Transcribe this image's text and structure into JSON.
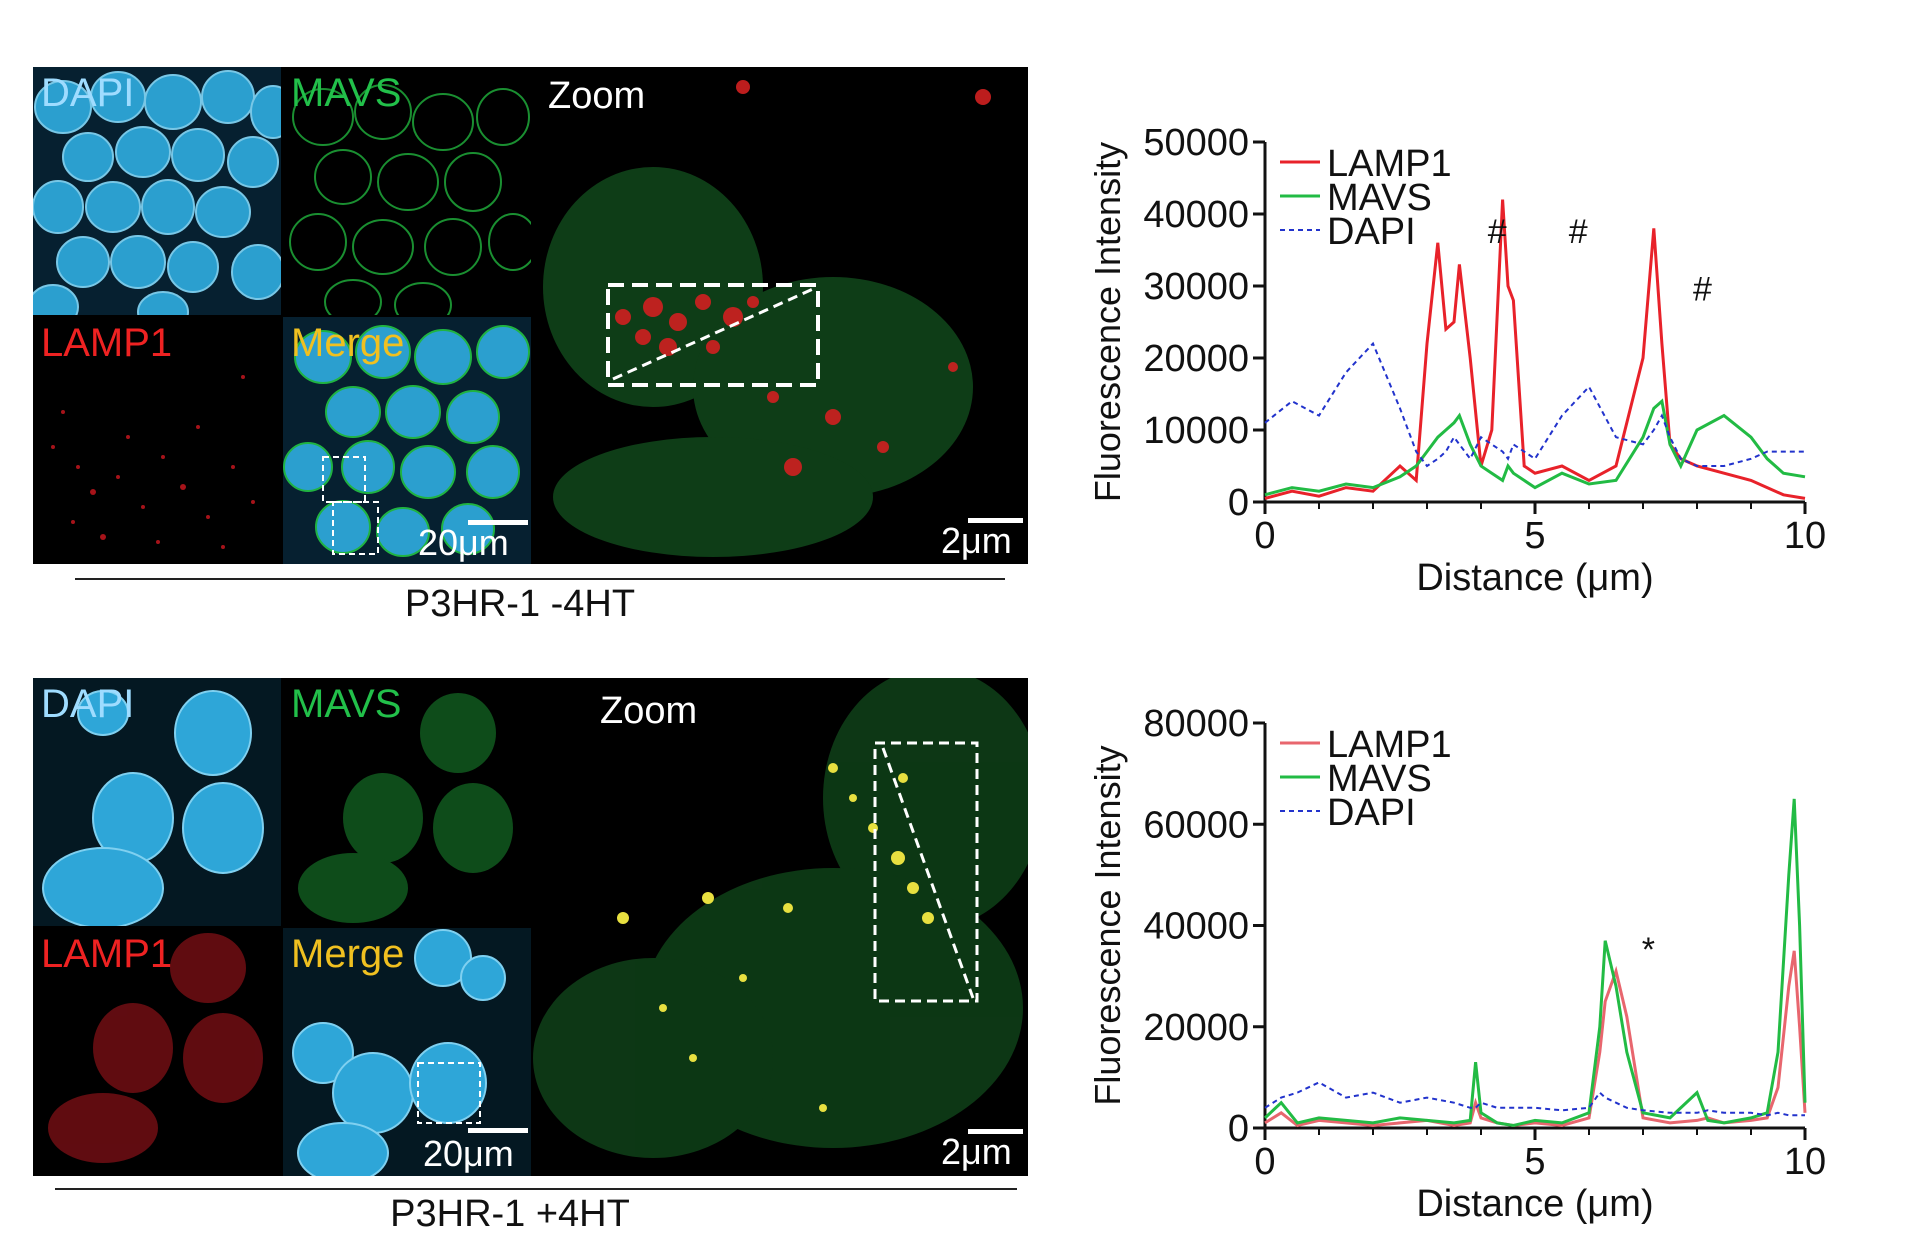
{
  "rows": [
    {
      "condition": "P3HR-1 -4HT",
      "channels": {
        "dapi": "DAPI",
        "mavs": "MAVS",
        "lamp1": "LAMP1",
        "merge": "Merge"
      },
      "zoom_label": "Zoom",
      "scale_small": "20μm",
      "scale_zoom": "2μm"
    },
    {
      "condition": "P3HR-1 +4HT",
      "channels": {
        "dapi": "DAPI",
        "mavs": "MAVS",
        "lamp1": "LAMP1",
        "merge": "Merge"
      },
      "zoom_label": "Zoom",
      "scale_small": "20μm",
      "scale_zoom": "2μm"
    }
  ],
  "colors": {
    "dapi": "#3fb0e0",
    "mavs": "#22bb44",
    "lamp1": "#e8222a",
    "merge": "#f0c020",
    "dapi_line": "#2233cc"
  },
  "chart_data": [
    {
      "type": "line",
      "title": "",
      "xlabel": "Distance (μm)",
      "ylabel": "Fluorescence Intensity",
      "xlim": [
        0,
        10
      ],
      "ylim": [
        0,
        50000
      ],
      "xticks": [
        0,
        5,
        10
      ],
      "yticks": [
        0,
        10000,
        20000,
        30000,
        40000,
        50000
      ],
      "legend": "top-left",
      "x": [
        0,
        0.5,
        1,
        1.5,
        2,
        2.5,
        2.8,
        3,
        3.2,
        3.35,
        3.5,
        3.6,
        3.8,
        4,
        4.2,
        4.4,
        4.5,
        4.6,
        4.8,
        5,
        5.5,
        6,
        6.5,
        7,
        7.2,
        7.35,
        7.5,
        7.7,
        8,
        8.5,
        9,
        9.3,
        9.6,
        10
      ],
      "series": [
        {
          "name": "LAMP1",
          "color": "#e8222a",
          "dash": false,
          "values": [
            500,
            1500,
            800,
            2000,
            1500,
            5000,
            3000,
            22000,
            36000,
            24000,
            25000,
            33000,
            20000,
            5000,
            10000,
            42000,
            30000,
            28000,
            5000,
            4000,
            5000,
            3000,
            5000,
            20000,
            38000,
            22000,
            8000,
            6000,
            5000,
            4000,
            3000,
            2000,
            1000,
            500
          ]
        },
        {
          "name": "MAVS",
          "color": "#22bb44",
          "dash": false,
          "values": [
            1000,
            2000,
            1500,
            2500,
            2000,
            3500,
            5000,
            7000,
            9000,
            10000,
            11000,
            12000,
            8000,
            5000,
            4000,
            3000,
            5000,
            4000,
            3000,
            2000,
            4000,
            2500,
            3000,
            9000,
            13000,
            14000,
            8000,
            5000,
            10000,
            12000,
            9000,
            6000,
            4000,
            3500
          ]
        },
        {
          "name": "DAPI",
          "color": "#2233cc",
          "dash": true,
          "values": [
            11000,
            14000,
            12000,
            18000,
            22000,
            13000,
            7000,
            5000,
            6000,
            7000,
            9000,
            8000,
            6000,
            9000,
            8000,
            7000,
            6000,
            8000,
            7000,
            6000,
            12000,
            16000,
            9000,
            8000,
            10000,
            12000,
            9000,
            6000,
            5000,
            5000,
            6000,
            7000,
            7000,
            7000
          ]
        }
      ],
      "annotations": [
        {
          "text": "#",
          "x": 4.3,
          "y": 36000
        },
        {
          "text": "#",
          "x": 5.8,
          "y": 36000
        },
        {
          "text": "#",
          "x": 8.1,
          "y": 28000
        }
      ]
    },
    {
      "type": "line",
      "title": "",
      "xlabel": "Distance (μm)",
      "ylabel": "Fluorescence Intensity",
      "xlim": [
        0,
        10
      ],
      "ylim": [
        0,
        80000
      ],
      "xticks": [
        0,
        5,
        10
      ],
      "yticks": [
        0,
        20000,
        40000,
        60000,
        80000
      ],
      "legend": "top-left",
      "x": [
        0,
        0.3,
        0.6,
        1,
        1.5,
        2,
        2.5,
        3,
        3.5,
        3.8,
        3.9,
        4,
        4.3,
        4.6,
        5,
        5.5,
        6,
        6.2,
        6.3,
        6.5,
        6.7,
        7,
        7.5,
        8,
        8.2,
        8.5,
        9,
        9.3,
        9.5,
        9.7,
        9.8,
        9.9,
        10
      ],
      "series": [
        {
          "name": "LAMP1",
          "color": "#e8666e",
          "dash": false,
          "values": [
            1000,
            3000,
            500,
            1500,
            1000,
            500,
            1000,
            1500,
            500,
            1000,
            5000,
            2000,
            1000,
            500,
            1000,
            500,
            2000,
            15000,
            25000,
            31000,
            22000,
            2000,
            1000,
            1500,
            2000,
            1000,
            1500,
            2000,
            8000,
            28000,
            35000,
            20000,
            3000
          ]
        },
        {
          "name": "MAVS",
          "color": "#22bb44",
          "dash": false,
          "values": [
            2000,
            5000,
            1000,
            2000,
            1500,
            1000,
            2000,
            1500,
            1000,
            1500,
            13000,
            3000,
            1000,
            500,
            1500,
            1000,
            3000,
            20000,
            37000,
            28000,
            15000,
            3000,
            2000,
            7000,
            1500,
            1000,
            2000,
            3000,
            15000,
            50000,
            65000,
            40000,
            5000
          ]
        },
        {
          "name": "DAPI",
          "color": "#2233cc",
          "dash": true,
          "values": [
            4000,
            6000,
            7000,
            9000,
            6000,
            7000,
            5000,
            6000,
            5000,
            4000,
            4000,
            5000,
            4000,
            4000,
            4000,
            3500,
            4000,
            7000,
            6000,
            5000,
            4000,
            3500,
            3000,
            3000,
            3500,
            3000,
            3000,
            2500,
            3000,
            2500,
            2500,
            2500,
            2500
          ]
        }
      ],
      "annotations": [
        {
          "text": "*",
          "x": 7.1,
          "y": 33000
        }
      ]
    }
  ]
}
